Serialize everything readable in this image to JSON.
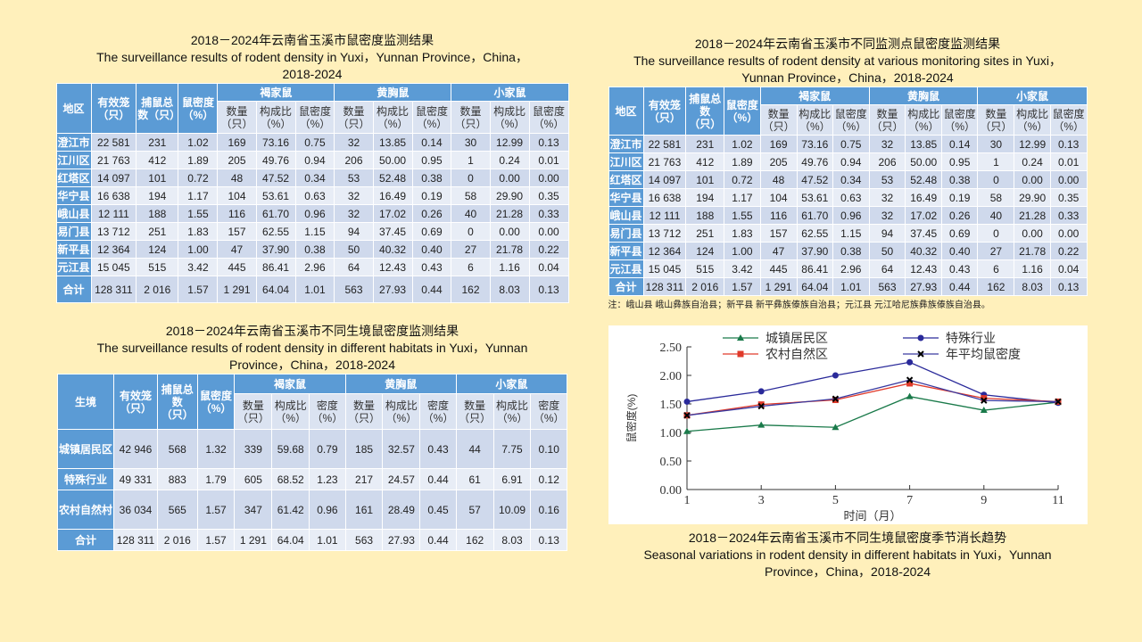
{
  "colors": {
    "background": "#fff0bb",
    "header": "#5b9bd5",
    "row_dark": "#cfd9ec",
    "row_light": "#e8edf6"
  },
  "t1": {
    "title": [
      "2018－2024年云南省玉溪市鼠密度监测结果",
      "The surveillance results of rodent density in Yuxi，Yunnan Province，China，",
      "2018-2024"
    ],
    "head": [
      "地区",
      "有效笼（只）",
      "捕鼠总数（只）",
      "鼠密度（%）"
    ],
    "groups": [
      "褐家鼠",
      "黄胸鼠",
      "小家鼠"
    ],
    "sub": [
      "数量（只）",
      "构成比（%）",
      "鼠密度（%）"
    ],
    "rows": [
      [
        "澄江市",
        "22 581",
        "231",
        "1.02",
        "169",
        "73.16",
        "0.75",
        "32",
        "13.85",
        "0.14",
        "30",
        "12.99",
        "0.13"
      ],
      [
        "江川区",
        "21 763",
        "412",
        "1.89",
        "205",
        "49.76",
        "0.94",
        "206",
        "50.00",
        "0.95",
        "1",
        "0.24",
        "0.01"
      ],
      [
        "红塔区",
        "14 097",
        "101",
        "0.72",
        "48",
        "47.52",
        "0.34",
        "53",
        "52.48",
        "0.38",
        "0",
        "0.00",
        "0.00"
      ],
      [
        "华宁县",
        "16 638",
        "194",
        "1.17",
        "104",
        "53.61",
        "0.63",
        "32",
        "16.49",
        "0.19",
        "58",
        "29.90",
        "0.35"
      ],
      [
        "峨山县",
        "12 111",
        "188",
        "1.55",
        "116",
        "61.70",
        "0.96",
        "32",
        "17.02",
        "0.26",
        "40",
        "21.28",
        "0.33"
      ],
      [
        "易门县",
        "13 712",
        "251",
        "1.83",
        "157",
        "62.55",
        "1.15",
        "94",
        "37.45",
        "0.69",
        "0",
        "0.00",
        "0.00"
      ],
      [
        "新平县",
        "12 364",
        "124",
        "1.00",
        "47",
        "37.90",
        "0.38",
        "50",
        "40.32",
        "0.40",
        "27",
        "21.78",
        "0.22"
      ],
      [
        "元江县",
        "15 045",
        "515",
        "3.42",
        "445",
        "86.41",
        "2.96",
        "64",
        "12.43",
        "0.43",
        "6",
        "1.16",
        "0.04"
      ],
      [
        "合计",
        "128 311",
        "2 016",
        "1.57",
        "1 291",
        "64.04",
        "1.01",
        "563",
        "27.93",
        "0.44",
        "162",
        "8.03",
        "0.13"
      ]
    ]
  },
  "t2": {
    "title": [
      "2018－2024年云南省玉溪市不同监测点鼠密度监测结果",
      "The surveillance results of rodent density at various monitoring sites in Yuxi，",
      "Yunnan Province，China，2018-2024"
    ],
    "head": [
      "地区",
      "有效笼（只）",
      "捕鼠总数（只）",
      "鼠密度（%）"
    ],
    "note": "注：峨山县 峨山彝族自治县；新平县 新平彝族傣族自治县；元江县 元江哈尼族彝族傣族自治县。"
  },
  "t3": {
    "title": [
      "2018－2024年云南省玉溪市不同生境鼠密度监测结果",
      "The surveillance results of rodent density in different habitats in Yuxi，Yunnan",
      "Province，China，2018-2024"
    ],
    "head": [
      "生境",
      "有效笼（只）",
      "捕鼠总数（只）",
      "鼠密度（%）"
    ],
    "sub": [
      "数量（只）",
      "构成比（%）",
      "密度（%）"
    ],
    "rows": [
      [
        "城镇居民区",
        "42 946",
        "568",
        "1.32",
        "339",
        "59.68",
        "0.79",
        "185",
        "32.57",
        "0.43",
        "44",
        "7.75",
        "0.10"
      ],
      [
        "特殊行业",
        "49 331",
        "883",
        "1.79",
        "605",
        "68.52",
        "1.23",
        "217",
        "24.57",
        "0.44",
        "61",
        "6.91",
        "0.12"
      ],
      [
        "农村自然村",
        "36 034",
        "565",
        "1.57",
        "347",
        "61.42",
        "0.96",
        "161",
        "28.49",
        "0.45",
        "57",
        "10.09",
        "0.16"
      ],
      [
        "合计",
        "128 311",
        "2 016",
        "1.57",
        "1 291",
        "64.04",
        "1.01",
        "563",
        "27.93",
        "0.44",
        "162",
        "8.03",
        "0.13"
      ]
    ]
  },
  "chart_caption": [
    "2018－2024年云南省玉溪市不同生境鼠密度季节消长趋势",
    "Seasonal variations in rodent density in different habitats in Yuxi，Yunnan",
    "Province，China，2018-2024"
  ],
  "chart_data": {
    "type": "line",
    "xlabel": "时间（月）",
    "ylabel": "鼠密度(%)",
    "x": [
      1,
      3,
      5,
      7,
      9,
      11
    ],
    "ylim": [
      0,
      2.5
    ],
    "yticks": [
      "0.00",
      "0.50",
      "1.00",
      "1.50",
      "2.00",
      "2.50"
    ],
    "legend": "top",
    "series": [
      {
        "name": "城镇居民区",
        "color": "#1a7a4a",
        "marker": "triangle",
        "values": [
          1.02,
          1.13,
          1.09,
          1.63,
          1.39,
          1.53
        ]
      },
      {
        "name": "特殊行业",
        "color": "#2a2a9a",
        "marker": "circle",
        "values": [
          1.54,
          1.72,
          2.0,
          2.23,
          1.66,
          1.52
        ]
      },
      {
        "name": "农村自然区",
        "color": "#e03a2a",
        "marker": "square",
        "values": [
          1.3,
          1.49,
          1.57,
          1.86,
          1.6,
          1.54
        ]
      },
      {
        "name": "年平均鼠密度",
        "color": "#3a3aa0",
        "marker": "x",
        "values": [
          1.3,
          1.46,
          1.59,
          1.92,
          1.56,
          1.54
        ]
      }
    ]
  }
}
